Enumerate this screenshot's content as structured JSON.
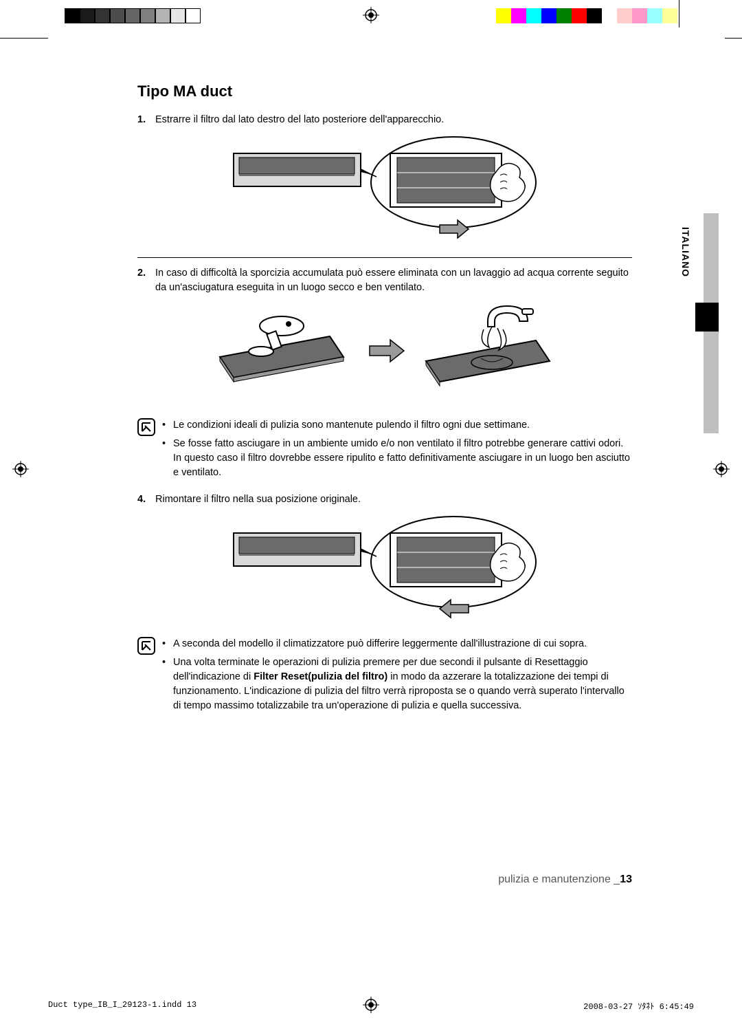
{
  "cropBar": {
    "left": [
      "#000000",
      "#1a1a1a",
      "#333333",
      "#4d4d4d",
      "#666666",
      "#808080",
      "#b3b3b3",
      "#e6e6e6",
      "#ffffff"
    ],
    "right": [
      "#ffff00",
      "#ff00ff",
      "#00ffff",
      "#0000ff",
      "#008000",
      "#ff0000",
      "#000000",
      "#ffffff",
      "#ffcccc",
      "#ff99cc",
      "#99ffff",
      "#ffff99"
    ]
  },
  "title": "Tipo MA duct",
  "step1": {
    "num": "1.",
    "text": "Estrarre il filtro dal lato destro del lato posteriore dell'apparecchio."
  },
  "step2": {
    "num": "2.",
    "text": "In caso di difficoltà la sporcizia accumulata può essere eliminata con un lavaggio ad acqua corrente seguito da un'asciugatura eseguita in un luogo secco e ben ventilato."
  },
  "step4": {
    "num": "4.",
    "text": "Rimontare il filtro nella sua posizione originale."
  },
  "note1": {
    "bullets": [
      "Le condizioni ideali di pulizia sono mantenute pulendo il filtro ogni due settimane.",
      "Se fosse fatto asciugare in un ambiente umido e/o non ventilato il filtro potrebbe generare cattivi odori.  In questo caso il filtro dovrebbe essere ripulito e fatto definitivamente asciugare in un luogo ben asciutto e ventilato."
    ]
  },
  "note2": {
    "bullet1": "A seconda del modello il climatizzatore può differire leggermente dall'illustrazione di cui sopra.",
    "bullet2a": "Una volta terminate le operazioni di pulizia premere per due secondi il pulsante di Resettaggio dell'indicazione di ",
    "bullet2bold": "Filter Reset(pulizia del filtro)",
    "bullet2b": " in modo da azzerare la totalizzazione dei tempi di funzionamento. L'indicazione di pulizia del filtro verrà riproposta se o quando  verrà superato l'intervallo di tempo massimo totalizzabile tra un'operazione di pulizia e quella successiva."
  },
  "sideTab": "ITALIANO",
  "footer": {
    "section": "pulizia e manutenzione _",
    "page": "13"
  },
  "imprint": {
    "file": "Duct type_IB_I_29123-1.indd   13",
    "date": "2008-03-27   ｿﾀﾈﾄ 6:45:49"
  },
  "figures": {
    "fill_mesh": "#6b6b6b",
    "fill_light": "#d9d9d9",
    "stroke": "#000000",
    "arrow_fill": "#9a9a9a"
  }
}
